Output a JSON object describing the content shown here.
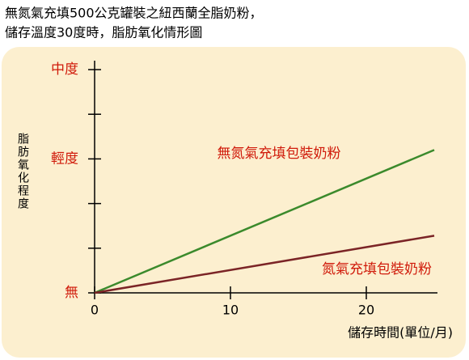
{
  "chart_data": {
    "type": "line",
    "title": [
      "無氮氣充填500公克罐裝之紐西蘭全脂奶粉，",
      "儲存溫度30度時，脂肪氧化情形圖"
    ],
    "x_label": "儲存時間(單位/月)",
    "y_label": "脂肪氧化程度",
    "x": [
      0,
      25
    ],
    "series": [
      {
        "name": "無氮氣充填包裝奶粉",
        "color": "#3b8a2c",
        "values": [
          0,
          3.2
        ]
      },
      {
        "name": "氮氣充填包裝奶粉",
        "color": "#7b2426",
        "values": [
          0,
          1.28
        ]
      }
    ],
    "xlim": [
      0,
      25
    ],
    "xticks": [
      0,
      10,
      20
    ],
    "ylim": [
      0,
      5.2
    ],
    "yticks": [
      {
        "value": 0,
        "label": "無"
      },
      {
        "value": 3,
        "label": "輕度"
      },
      {
        "value": 5,
        "label": "中度"
      }
    ],
    "y_minor_ticks": [
      1,
      2,
      4
    ],
    "label_color": "#d01a0a"
  }
}
